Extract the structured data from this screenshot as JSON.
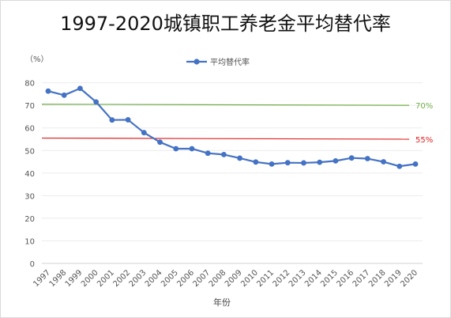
{
  "title": "1997-2020城镇职工养老金平均替代率",
  "chart_data": {
    "type": "line",
    "title": "1997-2020城镇职工养老金平均替代率",
    "xlabel": "年份",
    "ylabel": "（%）",
    "ylim": [
      0,
      80
    ],
    "yticks": [
      0,
      10,
      20,
      30,
      40,
      50,
      60,
      70,
      80
    ],
    "grid": true,
    "legend": "top",
    "categories": [
      "1997",
      "1998",
      "1999",
      "2000",
      "2001",
      "2002",
      "2003",
      "2004",
      "2005",
      "2006",
      "2007",
      "2008",
      "2009",
      "2010",
      "2011",
      "2012",
      "2013",
      "2014",
      "2015",
      "2016",
      "2017",
      "2018",
      "2019",
      "2020"
    ],
    "series": [
      {
        "name": "平均替代率",
        "color": "#4472c4",
        "values": [
          76.3,
          74.5,
          77.5,
          71.5,
          63.5,
          63.6,
          57.9,
          53.7,
          50.8,
          50.8,
          48.8,
          48.2,
          46.6,
          44.9,
          44.0,
          44.6,
          44.5,
          44.8,
          45.4,
          46.7,
          46.4,
          45.0,
          43.0,
          44.0
        ]
      }
    ],
    "reference_lines": [
      {
        "label": "70%",
        "value_start": 70.5,
        "value_end": 70,
        "color": "#70ad47"
      },
      {
        "label": "55%",
        "value_start": 55.5,
        "value_end": 55,
        "color": "#e02020"
      }
    ]
  }
}
